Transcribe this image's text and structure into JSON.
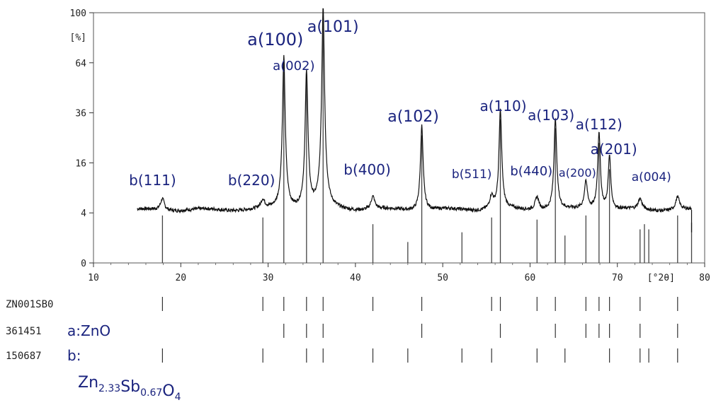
{
  "chart_data": {
    "type": "line",
    "title": "",
    "xlabel": "[°2θ]",
    "ylabel": "[%]",
    "xlim": [
      10,
      80
    ],
    "y_scale": "sqrt",
    "ylim": [
      0,
      100
    ],
    "x_ticks": [
      "10",
      "20",
      "30",
      "40",
      "50",
      "60",
      "70",
      "80"
    ],
    "y_ticks": [
      {
        "value": 0,
        "label": "0"
      },
      {
        "value": 4,
        "label": "4"
      },
      {
        "value": 16,
        "label": "16"
      },
      {
        "value": 36,
        "label": "36"
      },
      {
        "value": 64,
        "label": "64"
      },
      {
        "value": 100,
        "label": "100"
      }
    ],
    "y_unit_label": "[%]",
    "x_unit_label": "[°2θ]",
    "pattern": {
      "x_start": 15,
      "x_end": 78.5,
      "baseline": 4.5,
      "peaks": [
        {
          "x": 17.9,
          "y": 2.2,
          "w": 0.25
        },
        {
          "x": 29.4,
          "y": 1.6,
          "w": 0.25
        },
        {
          "x": 31.8,
          "y": 64,
          "w": 0.15
        },
        {
          "x": 34.4,
          "y": 55,
          "w": 0.15
        },
        {
          "x": 36.3,
          "y": 100,
          "w": 0.15
        },
        {
          "x": 42.0,
          "y": 2.5,
          "w": 0.25
        },
        {
          "x": 47.6,
          "y": 26,
          "w": 0.15
        },
        {
          "x": 55.6,
          "y": 2.5,
          "w": 0.25
        },
        {
          "x": 56.6,
          "y": 33,
          "w": 0.15
        },
        {
          "x": 60.8,
          "y": 2.5,
          "w": 0.25
        },
        {
          "x": 62.9,
          "y": 29,
          "w": 0.15
        },
        {
          "x": 66.4,
          "y": 6,
          "w": 0.2
        },
        {
          "x": 67.9,
          "y": 23,
          "w": 0.15
        },
        {
          "x": 69.1,
          "y": 14,
          "w": 0.15
        },
        {
          "x": 72.6,
          "y": 2.0,
          "w": 0.25
        },
        {
          "x": 76.9,
          "y": 2.5,
          "w": 0.25
        }
      ]
    },
    "reference_bars": [
      {
        "x": 17.9,
        "y": 3.6
      },
      {
        "x": 29.4,
        "y": 3.3
      },
      {
        "x": 31.8,
        "y": 64
      },
      {
        "x": 34.4,
        "y": 55
      },
      {
        "x": 36.3,
        "y": 100
      },
      {
        "x": 42.0,
        "y": 2.4
      },
      {
        "x": 46.0,
        "y": 0.7
      },
      {
        "x": 47.6,
        "y": 26
      },
      {
        "x": 52.2,
        "y": 1.5
      },
      {
        "x": 55.6,
        "y": 3.3
      },
      {
        "x": 56.6,
        "y": 33
      },
      {
        "x": 60.8,
        "y": 3.0
      },
      {
        "x": 62.9,
        "y": 29
      },
      {
        "x": 64.0,
        "y": 1.2
      },
      {
        "x": 66.4,
        "y": 3.6
      },
      {
        "x": 67.9,
        "y": 23
      },
      {
        "x": 69.1,
        "y": 14
      },
      {
        "x": 72.6,
        "y": 1.8
      },
      {
        "x": 73.1,
        "y": 2.4
      },
      {
        "x": 73.6,
        "y": 1.8
      },
      {
        "x": 76.9,
        "y": 3.6
      },
      {
        "x": 78.5,
        "y": 2.6
      }
    ],
    "peak_labels": [
      {
        "text": "b(111)",
        "x": 17.9
      },
      {
        "text": "b(220)",
        "x": 29.4
      },
      {
        "text": "a(100)",
        "x": 31.8
      },
      {
        "text": "a(002)",
        "x": 34.4
      },
      {
        "text": "a(101)",
        "x": 36.3
      },
      {
        "text": "b(400)",
        "x": 42.0
      },
      {
        "text": "a(102)",
        "x": 47.6
      },
      {
        "text": "b(511)",
        "x": 55.6
      },
      {
        "text": "a(110)",
        "x": 56.6
      },
      {
        "text": "b(440)",
        "x": 60.8
      },
      {
        "text": "a(103)",
        "x": 62.9
      },
      {
        "text": "a(200)",
        "x": 66.4
      },
      {
        "text": "a(112)",
        "x": 67.9
      },
      {
        "text": "a(201)",
        "x": 69.1
      },
      {
        "text": "a(004)",
        "x": 72.6
      }
    ],
    "stick_rows": [
      {
        "code": "ZN001SB0",
        "note": "",
        "positions": [
          17.9,
          29.4,
          31.8,
          34.4,
          36.3,
          42.0,
          47.6,
          55.6,
          56.6,
          60.8,
          62.9,
          66.4,
          67.9,
          69.1,
          72.6,
          76.9
        ]
      },
      {
        "code": "361451",
        "note": "a:ZnO",
        "positions": [
          31.8,
          34.4,
          36.3,
          47.6,
          56.6,
          62.9,
          66.4,
          67.9,
          69.1,
          72.6,
          76.9
        ]
      },
      {
        "code": "150687",
        "note": "b:",
        "positions": [
          17.9,
          29.4,
          34.4,
          36.3,
          42.0,
          46.0,
          52.2,
          55.6,
          60.8,
          64.0,
          69.1,
          72.6,
          73.6,
          76.9
        ]
      }
    ],
    "formula": "Zn2.33Sb0.67O4"
  }
}
